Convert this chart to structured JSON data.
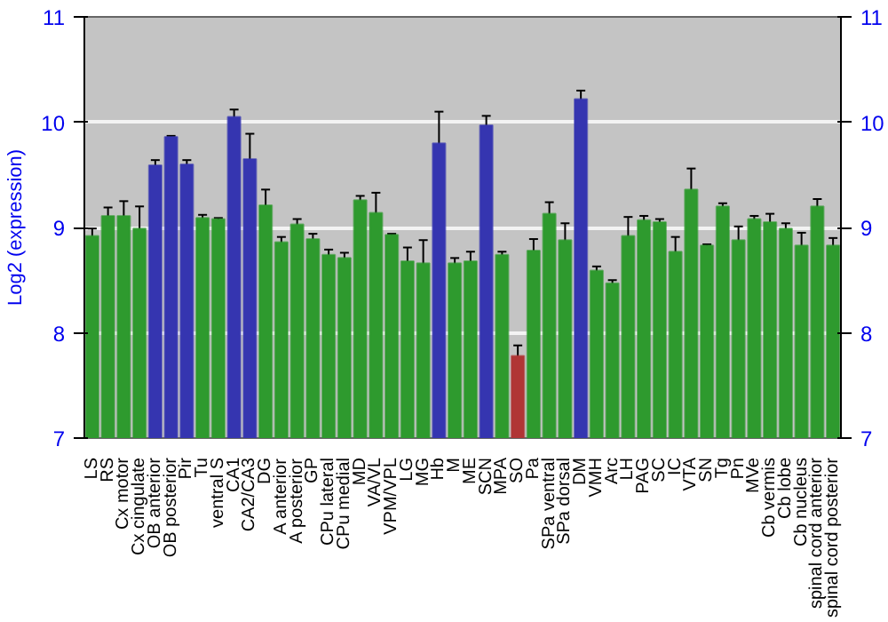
{
  "chart_data": {
    "type": "bar",
    "ylabel": "Log2 (expression)",
    "categories": [
      "LS",
      "RS",
      "Cx motor",
      "Cx cingulate",
      "OB anterior",
      "OB posterior",
      "Pir",
      "Tu",
      "ventral S",
      "CA1",
      "CA2/CA3",
      "DG",
      "A anterior",
      "A posterior",
      "GP",
      "CPu lateral",
      "CPu medial",
      "MD",
      "VA/VL",
      "VPM/VPL",
      "LG",
      "MG",
      "Hb",
      "M",
      "ME",
      "SCN",
      "MPA",
      "SO",
      "Pa",
      "SPa ventral",
      "SPa dorsal",
      "DM",
      "VMH",
      "Arc",
      "LH",
      "PAG",
      "SC",
      "IC",
      "VTA",
      "SN",
      "Tg",
      "Pn",
      "MVe",
      "Cb vermis",
      "Cb lobe",
      "Cb nucleus",
      "spinal cord anterior",
      "spinal cord posterior"
    ],
    "values": [
      8.92,
      9.11,
      9.11,
      8.99,
      9.59,
      9.86,
      9.6,
      9.09,
      9.08,
      10.05,
      9.65,
      9.21,
      8.86,
      9.03,
      8.89,
      8.74,
      8.71,
      9.26,
      9.14,
      8.93,
      8.68,
      8.66,
      9.8,
      8.66,
      8.68,
      9.97,
      8.74,
      7.78,
      8.78,
      9.13,
      8.88,
      10.22,
      8.59,
      8.47,
      8.92,
      9.07,
      9.05,
      8.77,
      9.36,
      8.83,
      9.2,
      8.88,
      9.08,
      9.05,
      8.99,
      8.83,
      9.2,
      8.83
    ],
    "errors": [
      0.07,
      0.08,
      0.14,
      0.21,
      0.05,
      0.01,
      0.04,
      0.03,
      0.01,
      0.07,
      0.24,
      0.15,
      0.05,
      0.05,
      0.05,
      0.05,
      0.05,
      0.04,
      0.19,
      0.01,
      0.13,
      0.22,
      0.3,
      0.05,
      0.09,
      0.09,
      0.03,
      0.1,
      0.11,
      0.11,
      0.16,
      0.08,
      0.04,
      0.03,
      0.18,
      0.04,
      0.03,
      0.14,
      0.2,
      0.01,
      0.03,
      0.13,
      0.03,
      0.08,
      0.05,
      0.12,
      0.07,
      0.07
    ],
    "colors": [
      "#2e9a2e",
      "#2e9a2e",
      "#2e9a2e",
      "#2e9a2e",
      "#3535b0",
      "#3535b0",
      "#3535b0",
      "#2e9a2e",
      "#2e9a2e",
      "#3535b0",
      "#3535b0",
      "#2e9a2e",
      "#2e9a2e",
      "#2e9a2e",
      "#2e9a2e",
      "#2e9a2e",
      "#2e9a2e",
      "#2e9a2e",
      "#2e9a2e",
      "#2e9a2e",
      "#2e9a2e",
      "#2e9a2e",
      "#3535b0",
      "#2e9a2e",
      "#2e9a2e",
      "#3535b0",
      "#2e9a2e",
      "#b03535",
      "#2e9a2e",
      "#2e9a2e",
      "#2e9a2e",
      "#3535b0",
      "#2e9a2e",
      "#2e9a2e",
      "#2e9a2e",
      "#2e9a2e",
      "#2e9a2e",
      "#2e9a2e",
      "#2e9a2e",
      "#2e9a2e",
      "#2e9a2e",
      "#2e9a2e",
      "#2e9a2e",
      "#2e9a2e",
      "#2e9a2e",
      "#2e9a2e",
      "#2e9a2e",
      "#2e9a2e"
    ],
    "ylim": [
      7,
      11
    ],
    "yticks": [
      7,
      8,
      9,
      10,
      11
    ],
    "y2lim": [
      7,
      11
    ],
    "y2ticks": [
      7,
      8,
      9,
      10,
      11
    ],
    "grid": "y"
  }
}
